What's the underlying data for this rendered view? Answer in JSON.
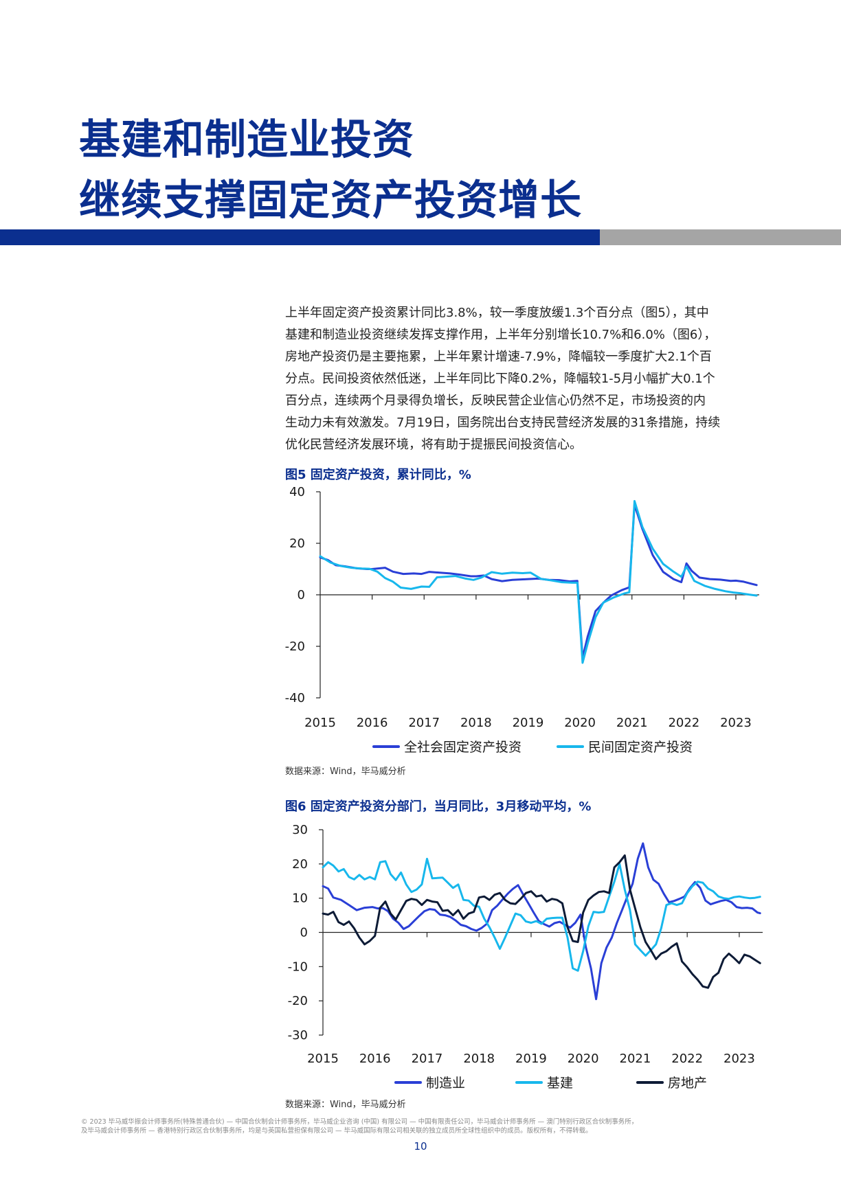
{
  "heading": {
    "line1": "基建和制造业投资",
    "line2": "继续支撑固定资产投资增长"
  },
  "body": [
    "上半年固定资产投资累计同比3.8%，较一季度放缓1.3个百分点（图5），其中",
    "基建和制造业投资继续发挥支撑作用，上半年分别增长10.7%和6.0%（图6），",
    "房地产投资仍是主要拖累，上半年累计增速-7.9%，降幅较一季度扩大2.1个百",
    "分点。民间投资依然低迷，上半年同比下降0.2%，降幅较1-5月小幅扩大0.1个",
    "百分点，连续两个月录得负增长，反映民营企业信心仍然不足，市场投资的内",
    "生动力未有效激发。7月19日，国务院出台支持民营经济发展的31条措施，持续",
    "优化民营经济发展环境，将有助于提振民间投资信心。"
  ],
  "fig5": {
    "title": "图5  固定资产投资，累计同比，%",
    "source": "数据来源：Wind，毕马威分析"
  },
  "fig6": {
    "title": "图6  固定资产投资分部门，当月同比，3月移动平均，%",
    "source": "数据来源：Wind，毕马威分析"
  },
  "footer": [
    "© 2023 毕马威华振会计师事务所(特殊普通合伙) — 中国合伙制会计师事务所，毕马威企业咨询 (中国) 有限公司 — 中国有限责任公司，毕马威会计师事务所 — 澳门特别行政区合伙制事务所，",
    "及毕马威会计师事务所 — 香港特别行政区合伙制事务所，均是与英国私营担保有限公司 — 毕马威国际有限公司相关联的独立成员所全球性组织中的成员。版权所有，不得转载。"
  ],
  "page_number": "10",
  "colors": {
    "brand_blue": "#0b2f8f",
    "series_dark_blue": "#2a3fd6",
    "series_cyan": "#17b7ec",
    "series_navy": "#0d1b36"
  },
  "chart_data": [
    {
      "type": "line",
      "title": "图5  固定资产投资，累计同比，%",
      "ylim": [
        -40,
        40
      ],
      "y_ticks": [
        40,
        20,
        0,
        -20,
        -40
      ],
      "x_ticks": [
        "2015",
        "2016",
        "2017",
        "2018",
        "2019",
        "2020",
        "2021",
        "2022",
        "2023"
      ],
      "xlim": [
        2015.0,
        2023.45
      ],
      "series": [
        {
          "name": "全社会固定资产投资",
          "color": "#2a3fd6",
          "x": [
            2015.0,
            2015.15,
            2015.3,
            2015.5,
            2015.7,
            2015.9,
            2016.0,
            2016.1,
            2016.25,
            2016.4,
            2016.6,
            2016.8,
            2016.95,
            2017.1,
            2017.3,
            2017.5,
            2017.7,
            2017.9,
            2018.0,
            2018.15,
            2018.3,
            2018.5,
            2018.7,
            2018.9,
            2019.0,
            2019.2,
            2019.4,
            2019.6,
            2019.8,
            2019.95,
            2020.05,
            2020.15,
            2020.3,
            2020.45,
            2020.6,
            2020.8,
            2020.95,
            2021.05,
            2021.2,
            2021.4,
            2021.6,
            2021.8,
            2021.95,
            2022.05,
            2022.15,
            2022.3,
            2022.5,
            2022.7,
            2022.9,
            2023.0,
            2023.15,
            2023.3,
            2023.4
          ],
          "y": [
            14.5,
            13.5,
            11.5,
            11.0,
            10.3,
            10.0,
            10.0,
            10.2,
            10.5,
            9.0,
            8.1,
            8.3,
            8.1,
            8.9,
            8.6,
            8.3,
            7.8,
            7.2,
            7.2,
            7.5,
            6.1,
            5.3,
            5.8,
            6.0,
            6.1,
            6.3,
            5.8,
            5.7,
            5.2,
            5.4,
            -24.5,
            -16.1,
            -6.3,
            -3.1,
            -0.3,
            1.8,
            2.9,
            35.0,
            25.6,
            15.4,
            8.9,
            6.1,
            4.9,
            12.2,
            9.3,
            6.7,
            6.1,
            5.9,
            5.4,
            5.5,
            5.1,
            4.3,
            3.8
          ]
        },
        {
          "name": "民间固定资产投资",
          "color": "#17b7ec",
          "x": [
            2015.0,
            2015.2,
            2015.4,
            2015.6,
            2015.8,
            2015.95,
            2016.1,
            2016.25,
            2016.4,
            2016.55,
            2016.75,
            2016.95,
            2017.1,
            2017.25,
            2017.4,
            2017.6,
            2017.8,
            2017.95,
            2018.1,
            2018.3,
            2018.5,
            2018.7,
            2018.9,
            2019.05,
            2019.25,
            2019.45,
            2019.65,
            2019.85,
            2019.95,
            2020.05,
            2020.15,
            2020.3,
            2020.45,
            2020.65,
            2020.85,
            2020.95,
            2021.05,
            2021.2,
            2021.4,
            2021.6,
            2021.8,
            2021.95,
            2022.05,
            2022.2,
            2022.4,
            2022.6,
            2022.8,
            2022.95,
            2023.1,
            2023.25,
            2023.4
          ],
          "y": [
            15.0,
            12.5,
            11.2,
            10.5,
            10.2,
            10.1,
            9.0,
            6.5,
            5.1,
            2.8,
            2.3,
            3.2,
            3.1,
            6.8,
            7.0,
            7.3,
            6.3,
            5.8,
            6.7,
            8.8,
            8.2,
            8.6,
            8.4,
            8.6,
            6.2,
            5.6,
            4.9,
            4.7,
            4.7,
            -26.4,
            -18.8,
            -8.7,
            -3.0,
            -1.0,
            0.5,
            1.0,
            36.4,
            26.4,
            17.9,
            12.0,
            9.0,
            7.0,
            11.0,
            5.4,
            3.5,
            2.3,
            1.4,
            0.9,
            0.6,
            0.1,
            -0.3
          ]
        }
      ]
    },
    {
      "type": "line",
      "title": "图6  固定资产投资分部门，当月同比，3月移动平均，%",
      "ylim": [
        -30,
        30
      ],
      "y_ticks": [
        30,
        20,
        10,
        0,
        -10,
        -20,
        -30
      ],
      "x_ticks": [
        "2015",
        "2016",
        "2017",
        "2018",
        "2019",
        "2020",
        "2021",
        "2022",
        "2023"
      ],
      "xlim": [
        2015.0,
        2023.45
      ],
      "series": [
        {
          "name": "制造业",
          "color": "#2a3fd6",
          "x": [
            2015.0,
            2015.1,
            2015.2,
            2015.35,
            2015.5,
            2015.65,
            2015.8,
            2015.95,
            2016.05,
            2016.15,
            2016.25,
            2016.35,
            2016.45,
            2016.55,
            2016.65,
            2016.75,
            2016.85,
            2016.95,
            2017.05,
            2017.15,
            2017.25,
            2017.35,
            2017.45,
            2017.55,
            2017.65,
            2017.75,
            2017.85,
            2017.95,
            2018.05,
            2018.15,
            2018.25,
            2018.35,
            2018.45,
            2018.55,
            2018.65,
            2018.75,
            2018.85,
            2018.95,
            2019.05,
            2019.15,
            2019.25,
            2019.35,
            2019.45,
            2019.55,
            2019.65,
            2019.75,
            2019.85,
            2019.95,
            2020.05,
            2020.15,
            2020.25,
            2020.35,
            2020.45,
            2020.55,
            2020.65,
            2020.75,
            2020.85,
            2020.95,
            2021.05,
            2021.15,
            2021.25,
            2021.35,
            2021.45,
            2021.55,
            2021.65,
            2021.75,
            2021.85,
            2021.95,
            2022.05,
            2022.15,
            2022.25,
            2022.35,
            2022.45,
            2022.55,
            2022.65,
            2022.75,
            2022.85,
            2022.95,
            2023.05,
            2023.15,
            2023.25,
            2023.35,
            2023.4
          ],
          "y": [
            13.5,
            12.8,
            10.2,
            9.5,
            8.0,
            6.5,
            7.2,
            7.4,
            7.0,
            7.1,
            6.2,
            4.0,
            2.8,
            1.0,
            1.8,
            3.3,
            4.8,
            6.2,
            6.8,
            6.6,
            5.2,
            5.0,
            4.5,
            3.5,
            2.2,
            1.8,
            1.0,
            0.5,
            1.3,
            2.5,
            6.5,
            7.8,
            9.6,
            11.3,
            12.7,
            13.8,
            11.0,
            8.4,
            5.8,
            3.3,
            2.4,
            1.7,
            2.7,
            3.1,
            2.2,
            1.4,
            2.8,
            5.2,
            -4.2,
            -10.5,
            -19.5,
            -9.0,
            -4.4,
            -1.5,
            2.8,
            6.6,
            10.5,
            14.2,
            21.5,
            26.0,
            19.0,
            15.4,
            14.2,
            11.3,
            8.8,
            9.2,
            9.8,
            10.5,
            12.9,
            14.7,
            13.0,
            9.3,
            8.2,
            8.7,
            9.2,
            9.5,
            8.8,
            7.4,
            7.1,
            7.2,
            7.0,
            5.8,
            5.6
          ]
        },
        {
          "name": "基建",
          "color": "#17b7ec",
          "x": [
            2015.0,
            2015.1,
            2015.2,
            2015.3,
            2015.4,
            2015.5,
            2015.6,
            2015.7,
            2015.8,
            2015.9,
            2016.0,
            2016.1,
            2016.2,
            2016.3,
            2016.4,
            2016.5,
            2016.6,
            2016.7,
            2016.8,
            2016.9,
            2017.0,
            2017.1,
            2017.2,
            2017.3,
            2017.4,
            2017.5,
            2017.6,
            2017.7,
            2017.8,
            2017.9,
            2018.0,
            2018.1,
            2018.2,
            2018.3,
            2018.4,
            2018.5,
            2018.6,
            2018.7,
            2018.8,
            2018.9,
            2019.0,
            2019.1,
            2019.2,
            2019.3,
            2019.4,
            2019.5,
            2019.6,
            2019.7,
            2019.8,
            2019.9,
            2020.0,
            2020.1,
            2020.2,
            2020.3,
            2020.4,
            2020.5,
            2020.6,
            2020.7,
            2020.8,
            2020.9,
            2021.0,
            2021.1,
            2021.2,
            2021.3,
            2021.4,
            2021.5,
            2021.6,
            2021.7,
            2021.8,
            2021.9,
            2022.0,
            2022.1,
            2022.2,
            2022.3,
            2022.4,
            2022.5,
            2022.6,
            2022.7,
            2022.8,
            2022.9,
            2023.0,
            2023.1,
            2023.2,
            2023.3,
            2023.4
          ],
          "y": [
            19.0,
            20.5,
            19.5,
            17.8,
            18.5,
            16.2,
            15.5,
            16.8,
            15.5,
            16.2,
            15.5,
            20.5,
            20.8,
            17.0,
            15.3,
            17.5,
            14.0,
            11.8,
            12.5,
            14.0,
            21.5,
            15.8,
            15.9,
            16.0,
            14.5,
            13.0,
            14.0,
            9.5,
            9.3,
            7.8,
            7.5,
            4.0,
            1.5,
            -1.5,
            -4.8,
            -1.5,
            2.0,
            5.5,
            5.0,
            3.2,
            2.8,
            3.3,
            2.5,
            4.0,
            4.2,
            4.3,
            4.3,
            -1.5,
            -10.5,
            -11.2,
            -5.5,
            1.8,
            6.0,
            5.8,
            6.0,
            10.5,
            14.8,
            20.0,
            12.5,
            6.5,
            -3.5,
            -5.2,
            -6.8,
            -5.2,
            -3.5,
            1.2,
            8.0,
            8.5,
            8.0,
            8.5,
            11.5,
            13.5,
            14.8,
            14.5,
            12.8,
            12.0,
            10.5,
            10.0,
            9.8,
            10.3,
            10.5,
            10.2,
            10.0,
            10.1,
            10.4
          ]
        },
        {
          "name": "房地产",
          "color": "#0d1b36",
          "x": [
            2015.0,
            2015.1,
            2015.2,
            2015.3,
            2015.4,
            2015.5,
            2015.6,
            2015.7,
            2015.8,
            2015.9,
            2016.0,
            2016.1,
            2016.2,
            2016.3,
            2016.4,
            2016.5,
            2016.6,
            2016.7,
            2016.8,
            2016.9,
            2017.0,
            2017.1,
            2017.2,
            2017.3,
            2017.4,
            2017.5,
            2017.6,
            2017.7,
            2017.8,
            2017.9,
            2018.0,
            2018.1,
            2018.2,
            2018.3,
            2018.4,
            2018.5,
            2018.6,
            2018.7,
            2018.8,
            2018.9,
            2019.0,
            2019.1,
            2019.2,
            2019.3,
            2019.4,
            2019.5,
            2019.6,
            2019.7,
            2019.8,
            2019.9,
            2020.0,
            2020.1,
            2020.2,
            2020.3,
            2020.4,
            2020.5,
            2020.6,
            2020.7,
            2020.8,
            2020.9,
            2021.0,
            2021.1,
            2021.2,
            2021.3,
            2021.4,
            2021.5,
            2021.6,
            2021.7,
            2021.8,
            2021.9,
            2022.0,
            2022.1,
            2022.2,
            2022.3,
            2022.4,
            2022.5,
            2022.6,
            2022.7,
            2022.8,
            2022.9,
            2023.0,
            2023.1,
            2023.2,
            2023.3,
            2023.4
          ],
          "y": [
            5.5,
            5.2,
            6.0,
            3.0,
            2.2,
            3.2,
            1.2,
            -1.5,
            -3.5,
            -2.5,
            -1.0,
            7.2,
            9.0,
            5.5,
            3.8,
            6.5,
            9.2,
            9.8,
            9.5,
            8.0,
            9.5,
            9.0,
            8.8,
            6.3,
            6.5,
            5.0,
            6.5,
            4.0,
            5.5,
            6.0,
            10.2,
            10.5,
            9.5,
            11.0,
            11.5,
            9.5,
            8.5,
            8.3,
            9.8,
            11.5,
            12.0,
            10.5,
            10.8,
            9.0,
            9.8,
            9.5,
            8.5,
            1.5,
            -2.5,
            -2.8,
            5.8,
            9.5,
            10.8,
            11.8,
            12.0,
            11.5,
            19.0,
            20.5,
            22.5,
            12.5,
            7.0,
            1.5,
            -2.8,
            -5.2,
            -7.8,
            -6.2,
            -5.5,
            -4.2,
            -3.2,
            -8.5,
            -10.2,
            -12.2,
            -13.8,
            -15.8,
            -16.2,
            -13.0,
            -11.8,
            -7.8,
            -6.2,
            -7.5,
            -9.0,
            -6.5,
            -7.0,
            -8.0,
            -9.0
          ]
        }
      ]
    }
  ]
}
